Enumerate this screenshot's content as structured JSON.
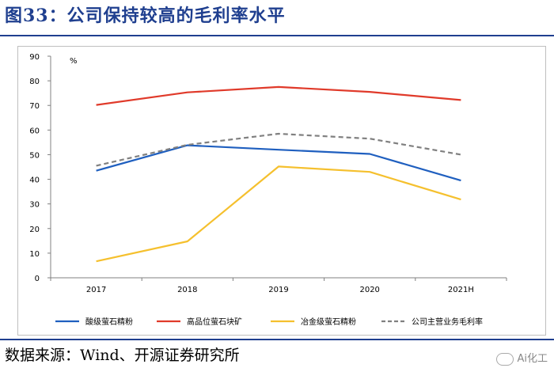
{
  "header": {
    "title": "图33：公司保持较高的毛利率水平"
  },
  "footer": {
    "source": "数据来源：Wind、开源证券研究所",
    "watermark": "Ai化工"
  },
  "chart_data": {
    "type": "line",
    "title": "",
    "xlabel": "",
    "ylabel": "%",
    "categories": [
      "2017",
      "2018",
      "2019",
      "2020",
      "2021H"
    ],
    "ylim": [
      0,
      90
    ],
    "yticks": [
      0,
      10,
      20,
      30,
      40,
      50,
      60,
      70,
      80,
      90
    ],
    "grid": false,
    "legend_position": "bottom",
    "series": [
      {
        "name": "酸级萤石精粉",
        "color": "#1f5fbf",
        "dash": false,
        "values": [
          43.5,
          53.8,
          52.0,
          50.3,
          39.5
        ]
      },
      {
        "name": "高品位萤石块矿",
        "color": "#e03a2a",
        "dash": false,
        "values": [
          70.2,
          75.3,
          77.5,
          75.5,
          72.2
        ]
      },
      {
        "name": "冶金级萤石精粉",
        "color": "#f5c02e",
        "dash": false,
        "values": [
          6.7,
          14.8,
          45.2,
          43.0,
          31.8
        ]
      },
      {
        "name": "公司主营业务毛利率",
        "color": "#808080",
        "dash": true,
        "values": [
          45.5,
          54.0,
          58.5,
          56.5,
          50.0
        ]
      }
    ]
  }
}
